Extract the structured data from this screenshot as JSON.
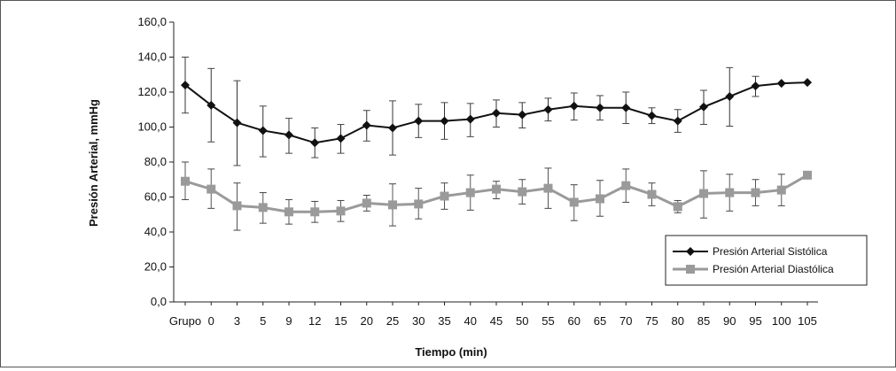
{
  "chart_data": {
    "type": "line",
    "xlabel": "Tiempo (min)",
    "ylabel": "Presión Arterial, mmHg",
    "ylim": [
      0,
      160
    ],
    "yticks": [
      "0,0",
      "20,0",
      "40,0",
      "60,0",
      "80,0",
      "100,0",
      "120,0",
      "140,0",
      "160,0"
    ],
    "categories": [
      "Grupo",
      "0",
      "3",
      "5",
      "9",
      "12",
      "15",
      "20",
      "25",
      "30",
      "35",
      "40",
      "45",
      "50",
      "55",
      "60",
      "65",
      "70",
      "75",
      "80",
      "85",
      "90",
      "95",
      "100",
      "105"
    ],
    "grid": false,
    "legend_position": "bottom-right",
    "series": [
      {
        "name": "Presión Arterial Sistólica",
        "marker": "diamond",
        "color": "#111111",
        "values": [
          124,
          112.5,
          102.5,
          98,
          95.5,
          91,
          93.5,
          101,
          99.5,
          103.5,
          103.5,
          104.5,
          108,
          107,
          110,
          112,
          111,
          111,
          106.5,
          103.5,
          111.5,
          117.5,
          123.5,
          125,
          125.5
        ],
        "error_upper": [
          140,
          133.5,
          126.5,
          112,
          105,
          99.5,
          101.5,
          109.5,
          115,
          113,
          114,
          113.5,
          115.5,
          114,
          116.5,
          119.5,
          118,
          120,
          111,
          110,
          121,
          134,
          129,
          null,
          null
        ],
        "error_lower": [
          108,
          91.5,
          78,
          83,
          85,
          82.5,
          85,
          92,
          84,
          94,
          93,
          94.5,
          100,
          99.5,
          103.5,
          104,
          104,
          102,
          102,
          97,
          101.5,
          100.5,
          117.5,
          null,
          null
        ]
      },
      {
        "name": "Presión Arterial Diastólica",
        "marker": "square",
        "color": "#9a9a9a",
        "values": [
          69,
          64.5,
          55,
          54,
          51.5,
          51.5,
          52,
          56.5,
          55.5,
          56,
          60.5,
          62.5,
          64.5,
          63,
          65,
          57,
          59,
          66.5,
          61.5,
          54.5,
          62,
          62.5,
          62.5,
          64,
          72.5
        ],
        "error_upper": [
          80,
          76,
          68,
          62.5,
          58.5,
          57.5,
          58,
          61,
          67.5,
          65,
          68,
          72.5,
          69,
          70,
          76.5,
          67,
          69.5,
          76,
          68,
          58,
          75,
          73,
          70,
          73,
          null
        ],
        "error_lower": [
          58.5,
          53.5,
          41,
          45,
          44.5,
          45.5,
          46,
          52,
          43.5,
          47.5,
          53,
          52.5,
          59,
          56,
          53.5,
          46.5,
          49,
          57,
          55,
          51,
          48,
          52,
          55,
          55,
          null
        ]
      }
    ]
  }
}
